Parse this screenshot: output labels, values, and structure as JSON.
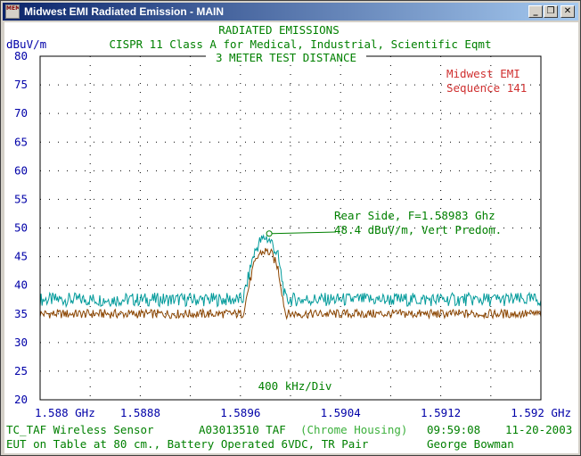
{
  "window": {
    "title": "Midwest EMI Radiated Emission - MAIN",
    "icon_text": "MEMI",
    "minimize_glyph": "_",
    "maximize_glyph": "❐",
    "close_glyph": "✕"
  },
  "header": {
    "line1": "RADIATED EMISSIONS",
    "line2": "CISPR 11 Class A for Medical, Industrial, Scientific Eqmt",
    "line3": "3 METER TEST DISTANCE",
    "company": "Midwest EMI",
    "sequence": "Sequence 141"
  },
  "annotation": {
    "line1": "Rear Side, F=1.58983 Ghz",
    "line2": "48.4 dBuV/m, Vert Predom."
  },
  "footer": {
    "row1_left": "TC_TAF Wireless Sensor",
    "row1_mid": "A03013510 TAF",
    "row1_mid2": "(Chrome Housing)",
    "row1_time": "09:59:08",
    "row1_date": "11-20-2003",
    "row2_left": "EUT on Table at 80 cm., Battery Operated 6VDC, TR Pair",
    "row2_right": "George Bowman"
  },
  "colors": {
    "background": "#ffffff",
    "axis_text": "#0000a8",
    "title_text": "#008000",
    "company_text": "#d03030",
    "trace_peak": "#009a9a",
    "trace_avg": "#8b4500",
    "grid": "#000000"
  },
  "chart_data": {
    "type": "line",
    "title": "RADIATED EMISSIONS",
    "ylabel": "dBuV/m",
    "xlabel": "400 kHz/Div",
    "ylim": [
      20,
      80
    ],
    "xlim": [
      1.588,
      1.592
    ],
    "y_ticks": [
      20,
      25,
      30,
      35,
      40,
      45,
      50,
      55,
      60,
      65,
      70,
      75,
      80
    ],
    "x_tick_labels": [
      {
        "value": 1.588,
        "label": "1.588 GHz"
      },
      {
        "value": 1.5888,
        "label": "1.5888"
      },
      {
        "value": 1.5896,
        "label": "1.5896"
      },
      {
        "value": 1.5904,
        "label": "1.5904"
      },
      {
        "value": 1.5912,
        "label": "1.5912"
      },
      {
        "value": 1.592,
        "label": "1.592 GHz"
      }
    ],
    "grid": true,
    "marker": {
      "x": 1.58983,
      "y": 48.4
    },
    "series": [
      {
        "name": "",
        "color": "#009a9a",
        "x": [
          1.588,
          1.5884,
          1.5888,
          1.5892,
          1.5894,
          1.58962,
          1.58966,
          1.5897,
          1.58975,
          1.5898,
          1.58985,
          1.5899,
          1.58996,
          1.59,
          1.5904,
          1.5908,
          1.5912,
          1.5916,
          1.592
        ],
        "y": [
          37.5,
          37.5,
          37.5,
          37.5,
          37.5,
          37.5,
          41,
          45,
          47.5,
          48.4,
          47.5,
          45,
          37.5,
          37.5,
          37.5,
          37.5,
          37.5,
          37.5,
          37.5
        ]
      },
      {
        "name": "",
        "color": "#8b4500",
        "x": [
          1.588,
          1.5884,
          1.5888,
          1.5892,
          1.5894,
          1.58962,
          1.58966,
          1.5897,
          1.58975,
          1.5898,
          1.58985,
          1.5899,
          1.58996,
          1.59,
          1.5904,
          1.5908,
          1.5912,
          1.5916,
          1.592
        ],
        "y": [
          35,
          35,
          35,
          35,
          35,
          35,
          39,
          43,
          45.5,
          46,
          45.5,
          43,
          35,
          35,
          35,
          35,
          35,
          35,
          35
        ]
      }
    ]
  }
}
